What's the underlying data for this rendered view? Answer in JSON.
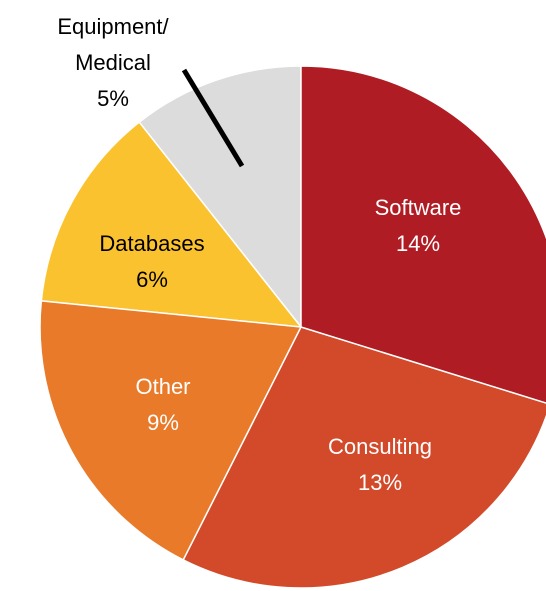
{
  "chart_data": {
    "type": "pie",
    "categories": [
      "Software",
      "Consulting",
      "Other",
      "Databases",
      "Equipment/ Medical"
    ],
    "values": [
      14,
      13,
      9,
      6,
      5
    ],
    "value_labels": [
      "14%",
      "13%",
      "9%",
      "6%",
      "5%"
    ],
    "colors": [
      "#b01c24",
      "#d24a2a",
      "#e87a2a",
      "#fbc22f",
      "#dcdcdc"
    ],
    "label_colors": [
      "#ffffff",
      "#ffffff",
      "#ffffff",
      "#000000",
      "#000000"
    ]
  }
}
